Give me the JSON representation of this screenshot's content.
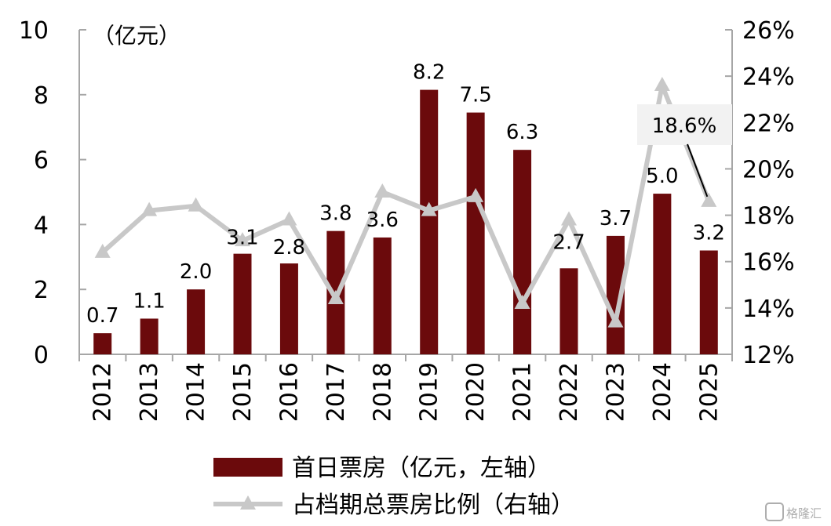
{
  "chart_data": {
    "type": "bar",
    "categories": [
      "2012",
      "2013",
      "2014",
      "2015",
      "2016",
      "2017",
      "2018",
      "2019",
      "2020",
      "2021",
      "2022",
      "2023",
      "2024",
      "2025"
    ],
    "series": [
      {
        "name": "首日票房（亿元，左轴）",
        "type": "bar",
        "axis": "left",
        "color": "#6b0a0c",
        "values": [
          0.65,
          1.1,
          2.0,
          3.1,
          2.8,
          3.8,
          3.6,
          8.15,
          7.45,
          6.3,
          2.65,
          3.65,
          4.95,
          3.2
        ],
        "data_labels": [
          "0.7",
          "1.1",
          "2.0",
          "3.1",
          "2.8",
          "3.8",
          "3.6",
          "8.2",
          "7.5",
          "6.3",
          "2.7",
          "3.7",
          "5.0",
          "3.2"
        ]
      },
      {
        "name": "占档期总票房比例（右轴）",
        "type": "line",
        "axis": "right",
        "color": "#c8c8c8",
        "marker": "triangle",
        "values": [
          16.4,
          18.2,
          18.4,
          16.9,
          17.8,
          14.4,
          19.0,
          18.2,
          18.8,
          14.2,
          17.8,
          13.4,
          23.6,
          18.6
        ]
      }
    ],
    "left_axis": {
      "unit": "（亿元）",
      "ylim": [
        0,
        10
      ],
      "ticks": [
        "0",
        "2",
        "4",
        "6",
        "8",
        "10"
      ]
    },
    "right_axis": {
      "ylim": [
        12,
        26
      ],
      "ticks": [
        "12%",
        "14%",
        "16%",
        "18%",
        "20%",
        "22%",
        "24%",
        "26%"
      ]
    },
    "annotation": {
      "text": "18.6%",
      "category": "2025"
    },
    "legend_position": "bottom",
    "grid": false
  },
  "watermark": {
    "text": "格隆汇"
  }
}
